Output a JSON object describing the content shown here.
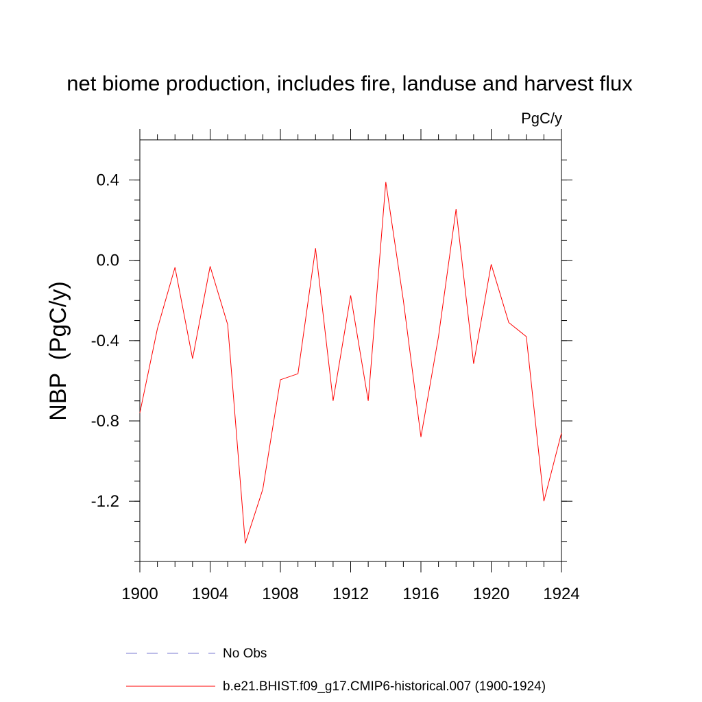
{
  "chart_data": {
    "type": "line",
    "title": "net biome production, includes fire, landuse and harvest flux",
    "units": "PgC/y",
    "xlabel": "",
    "ylabel": "NBP  (PgC/y)",
    "xlim": [
      1900,
      1924
    ],
    "ylim": [
      -1.5,
      0.6
    ],
    "x_ticks": [
      1900,
      1904,
      1908,
      1912,
      1916,
      1920,
      1924
    ],
    "y_ticks": [
      0.4,
      0.0,
      -0.4,
      -0.8,
      -1.2
    ],
    "y_tick_labels": [
      "0.4",
      "0.0",
      "-0.4",
      "-0.8",
      "-1.2"
    ],
    "grid": false,
    "x": [
      1900,
      1901,
      1902,
      1903,
      1904,
      1905,
      1906,
      1907,
      1908,
      1909,
      1910,
      1911,
      1912,
      1913,
      1914,
      1915,
      1916,
      1917,
      1918,
      1919,
      1920,
      1921,
      1922,
      1923,
      1924
    ],
    "series": [
      {
        "name": "b.e21.BHIST.f09_g17.CMIP6-historical.007 (1900-1924)",
        "color": "#ff0000",
        "style": "solid",
        "values": [
          -0.76,
          -0.34,
          -0.035,
          -0.49,
          -0.03,
          -0.32,
          -1.41,
          -1.14,
          -0.595,
          -0.565,
          0.06,
          -0.7,
          -0.175,
          -0.7,
          0.39,
          -0.2,
          -0.88,
          -0.38,
          0.255,
          -0.515,
          -0.02,
          -0.31,
          -0.38,
          -1.2,
          -0.86
        ]
      }
    ],
    "legend": [
      {
        "label": "No Obs",
        "color": "#7a7ad0",
        "style": "dashed"
      },
      {
        "label": "b.e21.BHIST.f09_g17.CMIP6-historical.007 (1900-1924)",
        "color": "#ff0000",
        "style": "solid"
      }
    ],
    "legend_position": "bottom"
  }
}
